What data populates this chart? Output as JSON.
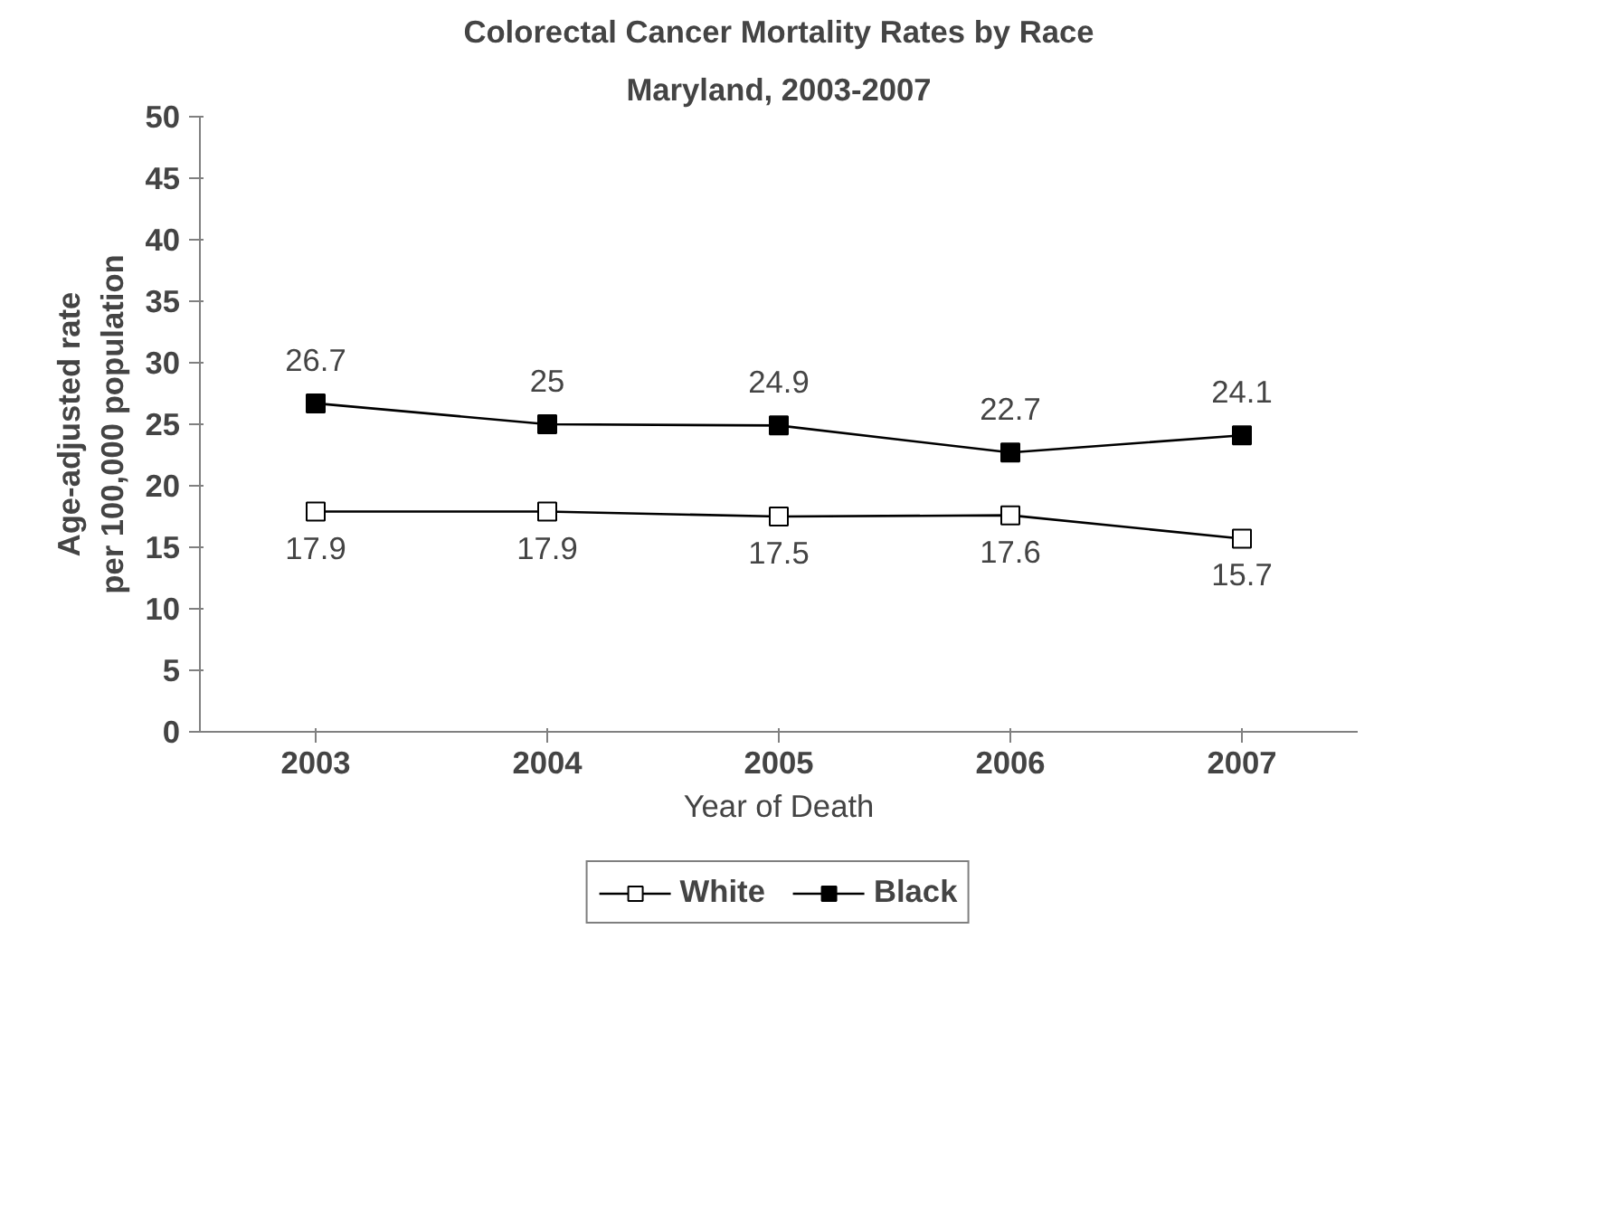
{
  "chart_data": {
    "type": "line",
    "title": "Colorectal Cancer Mortality Rates by Race",
    "subtitle": "Maryland, 2003-2007",
    "xlabel": "Year of Death",
    "ylabel": "Age-adjusted rate\nper 100,000 population",
    "categories": [
      "2003",
      "2004",
      "2005",
      "2006",
      "2007"
    ],
    "series": [
      {
        "name": "White",
        "color": "#ffffff",
        "values": [
          17.9,
          17.9,
          17.5,
          17.6,
          15.7
        ]
      },
      {
        "name": "Black",
        "color": "#000000",
        "values": [
          26.7,
          25,
          24.9,
          22.7,
          24.1
        ]
      }
    ],
    "ylim": [
      0,
      50
    ],
    "yticks": [
      0,
      5,
      10,
      15,
      20,
      25,
      30,
      35,
      40,
      45,
      50
    ],
    "grid": false,
    "legend": "bottom",
    "marker": "square",
    "line_style": "solid",
    "data_labels": true
  }
}
